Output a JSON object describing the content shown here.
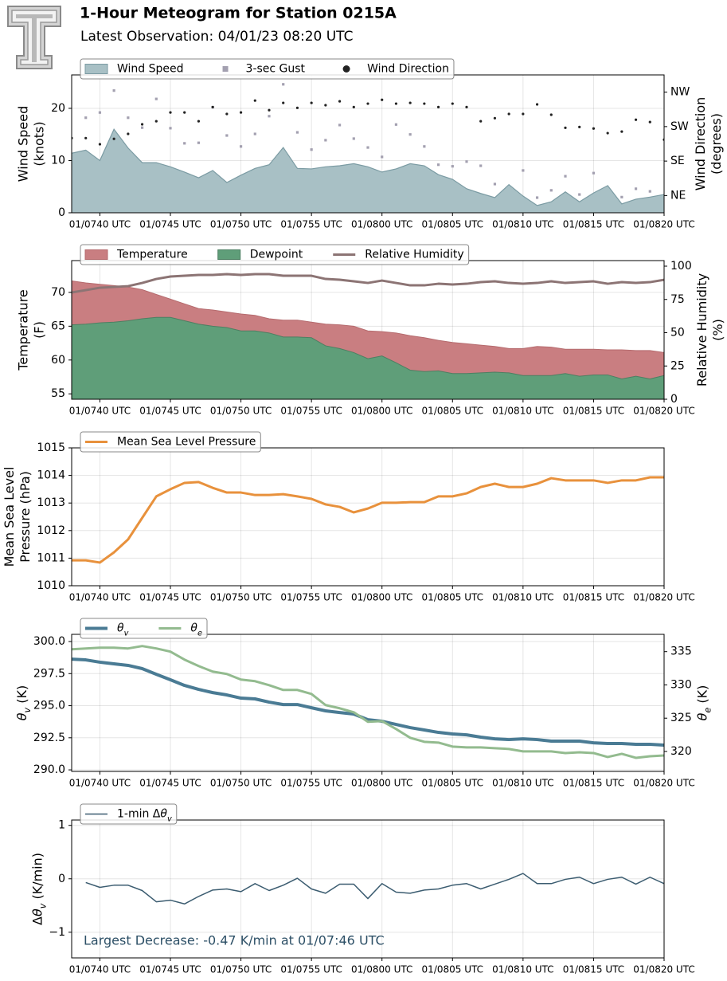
{
  "header": {
    "title": "1-Hour Meteogram for Station 0215A",
    "subtitle": "Latest Observation: 04/01/23 08:20 UTC"
  },
  "chart_data": [
    {
      "type": "area",
      "ylabel": [
        "Wind Speed",
        "(knots)"
      ],
      "y2label": [
        "Wind Direction",
        "(degrees)"
      ],
      "grid": true,
      "legend": "top-left",
      "x": [
        38,
        39,
        40,
        41,
        42,
        43,
        44,
        45,
        46,
        47,
        48,
        49,
        50,
        51,
        52,
        53,
        54,
        55,
        56,
        57,
        58,
        59,
        60,
        61,
        62,
        63,
        64,
        65,
        66,
        67,
        68,
        69,
        70,
        71,
        72,
        73,
        74,
        75,
        76,
        77,
        78,
        79,
        80
      ],
      "xlim": [
        38,
        80
      ],
      "xticks": [
        {
          "value": 40,
          "label": "01/0740 UTC"
        },
        {
          "value": 45,
          "label": "01/0745 UTC"
        },
        {
          "value": 50,
          "label": "01/0750 UTC"
        },
        {
          "value": 55,
          "label": "01/0755 UTC"
        },
        {
          "value": 60,
          "label": "01/0800 UTC"
        },
        {
          "value": 65,
          "label": "01/0805 UTC"
        },
        {
          "value": 70,
          "label": "01/0810 UTC"
        },
        {
          "value": 75,
          "label": "01/0815 UTC"
        },
        {
          "value": 80,
          "label": "01/0820 UTC"
        }
      ],
      "ylim": [
        0,
        26.4
      ],
      "yticks": [
        0,
        10,
        20
      ],
      "y2lim": [
        0,
        360
      ],
      "y2ticks": [
        {
          "value": 45,
          "label": "NE"
        },
        {
          "value": 135,
          "label": "SE"
        },
        {
          "value": 225,
          "label": "SW"
        },
        {
          "value": 315,
          "label": "NW"
        }
      ],
      "series": [
        {
          "name": "Wind Speed",
          "type": "area",
          "color": "#a8c0c5",
          "edge": "#7b9ba3",
          "values": [
            11.4,
            12,
            10,
            16,
            12.4,
            9.6,
            9.6,
            8.8,
            7.8,
            6.7,
            8.1,
            5.8,
            7.2,
            8.5,
            9.2,
            12.5,
            8.5,
            8.4,
            8.8,
            9,
            9.4,
            8.8,
            7.8,
            8.4,
            9.4,
            9,
            7.3,
            6.4,
            4.6,
            3.7,
            2.9,
            5.4,
            3.2,
            1.4,
            2.1,
            4,
            2.1,
            3.8,
            5.2,
            1.7,
            2.6,
            3,
            3.5
          ]
        },
        {
          "name": "3-sec Gust",
          "type": "scatter",
          "marker": "square",
          "color": "#a3a0b0",
          "values": [
            null,
            18.2,
            19.2,
            23.4,
            18.2,
            16.3,
            21.8,
            16.2,
            13.3,
            13.4,
            20.2,
            14.8,
            12.7,
            15.1,
            18.5,
            24.6,
            15.4,
            12.1,
            13.9,
            16.8,
            14.2,
            12.5,
            10.7,
            16.9,
            15,
            12.7,
            9.2,
            8.9,
            9.8,
            9,
            5.5,
            null,
            8.1,
            2.9,
            4.3,
            7,
            3.5,
            7.6,
            null,
            3,
            4.6,
            4.1,
            null
          ]
        },
        {
          "name": "Wind Direction",
          "type": "scatter",
          "marker": "circle",
          "color": "#222222",
          "axis": "y2",
          "values": [
            195,
            195,
            179,
            193,
            206,
            231,
            239,
            262,
            262,
            239,
            276,
            258,
            262,
            293,
            268,
            287,
            274,
            287,
            281,
            291,
            276,
            285,
            295,
            285,
            287,
            285,
            276,
            285,
            276,
            239,
            247,
            258,
            258,
            283,
            256,
            222,
            224,
            220,
            208,
            212,
            243,
            237,
            191
          ]
        }
      ]
    },
    {
      "type": "area",
      "ylabel": [
        "Temperature",
        "(F)"
      ],
      "y2label": [
        "Relative Humidity",
        "(%)"
      ],
      "grid": true,
      "legend": "top-left",
      "x": [
        38,
        39,
        40,
        41,
        42,
        43,
        44,
        45,
        46,
        47,
        48,
        49,
        50,
        51,
        52,
        53,
        54,
        55,
        56,
        57,
        58,
        59,
        60,
        61,
        62,
        63,
        64,
        65,
        66,
        67,
        68,
        69,
        70,
        71,
        72,
        73,
        74,
        75,
        76,
        77,
        78,
        79,
        80
      ],
      "xlim": [
        38,
        80
      ],
      "xticks": [
        {
          "value": 40,
          "label": "01/0740 UTC"
        },
        {
          "value": 45,
          "label": "01/0745 UTC"
        },
        {
          "value": 50,
          "label": "01/0750 UTC"
        },
        {
          "value": 55,
          "label": "01/0755 UTC"
        },
        {
          "value": 60,
          "label": "01/0800 UTC"
        },
        {
          "value": 65,
          "label": "01/0805 UTC"
        },
        {
          "value": 70,
          "label": "01/0810 UTC"
        },
        {
          "value": 75,
          "label": "01/0815 UTC"
        },
        {
          "value": 80,
          "label": "01/0820 UTC"
        }
      ],
      "ylim": [
        54.2,
        74.7
      ],
      "yticks": [
        55,
        60,
        65,
        70
      ],
      "y2lim": [
        0,
        104.2
      ],
      "y2ticks": [
        0,
        25,
        50,
        75,
        100
      ],
      "series": [
        {
          "name": "Temperature",
          "type": "area",
          "color": "#c97e81",
          "edge": "#b56b6e",
          "values": [
            71.7,
            71.4,
            71.2,
            71,
            70.8,
            70.4,
            69.7,
            69,
            68.3,
            67.6,
            67.4,
            67.1,
            66.8,
            66.6,
            66.1,
            65.9,
            65.9,
            65.6,
            65.3,
            65.2,
            65,
            64.3,
            64.2,
            64,
            63.6,
            63.3,
            62.9,
            62.6,
            62.4,
            62.2,
            62,
            61.7,
            61.7,
            62,
            61.9,
            61.6,
            61.6,
            61.6,
            61.5,
            61.5,
            61.4,
            61.4,
            61.1
          ]
        },
        {
          "name": "Dewpoint",
          "type": "area",
          "color": "#5f9e79",
          "edge": "#4d7f62",
          "values": [
            65.2,
            65.3,
            65.5,
            65.6,
            65.8,
            66.1,
            66.3,
            66.3,
            65.8,
            65.3,
            65,
            64.8,
            64.3,
            64.3,
            64,
            63.4,
            63.4,
            63.3,
            62.1,
            61.7,
            61.1,
            60.2,
            60.6,
            59.6,
            58.5,
            58.3,
            58.4,
            58,
            58,
            58.1,
            58.2,
            58.1,
            57.7,
            57.7,
            57.7,
            58,
            57.6,
            57.8,
            57.8,
            57.2,
            57.6,
            57.2,
            57.7
          ]
        },
        {
          "name": "Relative Humidity",
          "type": "line",
          "color": "#8c7474",
          "axis": "y2",
          "values": [
            80.2,
            82,
            83.8,
            84.4,
            85,
            87.4,
            90.4,
            92.2,
            92.8,
            93.4,
            93.4,
            94,
            93.4,
            94,
            94,
            92.8,
            92.8,
            92.8,
            90.4,
            89.8,
            88.6,
            87.4,
            89.2,
            87.4,
            85.6,
            85.6,
            86.8,
            86.2,
            86.8,
            88,
            88.6,
            87.4,
            86.8,
            87.4,
            88.6,
            87.4,
            88,
            88.6,
            86.8,
            88,
            87.4,
            88,
            89.8
          ]
        }
      ]
    },
    {
      "type": "line",
      "ylabel": [
        "Mean Sea Level",
        "Pressure (hPa)"
      ],
      "grid": true,
      "legend": "top-left",
      "x": [
        38,
        39,
        40,
        41,
        42,
        43,
        44,
        45,
        46,
        47,
        48,
        49,
        50,
        51,
        52,
        53,
        54,
        55,
        56,
        57,
        58,
        59,
        60,
        61,
        62,
        63,
        64,
        65,
        66,
        67,
        68,
        69,
        70,
        71,
        72,
        73,
        74,
        75,
        76,
        77,
        78,
        79,
        80
      ],
      "xlim": [
        38,
        80
      ],
      "xticks": [
        {
          "value": 40,
          "label": "01/0740 UTC"
        },
        {
          "value": 45,
          "label": "01/0745 UTC"
        },
        {
          "value": 50,
          "label": "01/0750 UTC"
        },
        {
          "value": 55,
          "label": "01/0755 UTC"
        },
        {
          "value": 60,
          "label": "01/0800 UTC"
        },
        {
          "value": 65,
          "label": "01/0805 UTC"
        },
        {
          "value": 70,
          "label": "01/0810 UTC"
        },
        {
          "value": 75,
          "label": "01/0815 UTC"
        },
        {
          "value": 80,
          "label": "01/0820 UTC"
        }
      ],
      "ylim": [
        1010,
        1015
      ],
      "yticks": [
        1010,
        1011,
        1012,
        1013,
        1014,
        1015
      ],
      "series": [
        {
          "name": "Mean Sea Level Pressure",
          "type": "line",
          "color": "#e8913c",
          "values": [
            1010.92,
            1010.92,
            1010.84,
            1011.21,
            1011.68,
            1012.46,
            1013.24,
            1013.5,
            1013.73,
            1013.76,
            1013.55,
            1013.38,
            1013.38,
            1013.29,
            1013.29,
            1013.32,
            1013.24,
            1013.15,
            1012.95,
            1012.86,
            1012.66,
            1012.8,
            1013.01,
            1013.01,
            1013.03,
            1013.03,
            1013.24,
            1013.24,
            1013.35,
            1013.58,
            1013.7,
            1013.58,
            1013.58,
            1013.7,
            1013.9,
            1013.82,
            1013.82,
            1013.82,
            1013.73,
            1013.82,
            1013.82,
            1013.93,
            1013.93
          ]
        }
      ]
    },
    {
      "type": "line",
      "ylabel": [
        "θv (K)"
      ],
      "y2label": [
        "θe (K)"
      ],
      "grid": true,
      "legend": "top-left",
      "x": [
        38,
        39,
        40,
        41,
        42,
        43,
        44,
        45,
        46,
        47,
        48,
        49,
        50,
        51,
        52,
        53,
        54,
        55,
        56,
        57,
        58,
        59,
        60,
        61,
        62,
        63,
        64,
        65,
        66,
        67,
        68,
        69,
        70,
        71,
        72,
        73,
        74,
        75,
        76,
        77,
        78,
        79,
        80
      ],
      "xlim": [
        38,
        80
      ],
      "xticks": [
        {
          "value": 40,
          "label": "01/0740 UTC"
        },
        {
          "value": 45,
          "label": "01/0745 UTC"
        },
        {
          "value": 50,
          "label": "01/0750 UTC"
        },
        {
          "value": 55,
          "label": "01/0755 UTC"
        },
        {
          "value": 60,
          "label": "01/0800 UTC"
        },
        {
          "value": 65,
          "label": "01/0805 UTC"
        },
        {
          "value": 70,
          "label": "01/0810 UTC"
        },
        {
          "value": 75,
          "label": "01/0815 UTC"
        },
        {
          "value": 80,
          "label": "01/0820 UTC"
        }
      ],
      "ylim": [
        289.88,
        300.56
      ],
      "yticks": [
        {
          "value": 290,
          "label": "290.0"
        },
        {
          "value": 292.5,
          "label": "292.5"
        },
        {
          "value": 295,
          "label": "295.0"
        },
        {
          "value": 297.5,
          "label": "297.5"
        },
        {
          "value": 300,
          "label": "300.0"
        }
      ],
      "y2lim": [
        317.0,
        337.6
      ],
      "y2ticks": [
        320,
        325,
        330,
        335
      ],
      "series": [
        {
          "name": "θv",
          "type": "line",
          "color": "#4a7b94",
          "values": [
            298.63,
            298.57,
            298.39,
            298.26,
            298.14,
            297.89,
            297.45,
            297.02,
            296.58,
            296.27,
            296.02,
            295.84,
            295.59,
            295.53,
            295.28,
            295.09,
            295.09,
            294.84,
            294.6,
            294.47,
            294.35,
            293.91,
            293.79,
            293.54,
            293.29,
            293.11,
            292.92,
            292.8,
            292.73,
            292.55,
            292.42,
            292.36,
            292.42,
            292.36,
            292.24,
            292.24,
            292.24,
            292.11,
            292.05,
            292.05,
            291.99,
            291.99,
            291.93
          ]
        },
        {
          "name": "θe",
          "type": "line",
          "color": "#93bb8f",
          "axis": "y2",
          "values": [
            335.36,
            335.48,
            335.6,
            335.6,
            335.48,
            335.84,
            335.48,
            335.0,
            333.8,
            332.84,
            332,
            331.64,
            330.8,
            330.56,
            329.96,
            329.24,
            329.24,
            328.64,
            326.97,
            326.49,
            325.89,
            324.45,
            324.56,
            323.37,
            322.05,
            321.45,
            321.33,
            320.73,
            320.61,
            320.61,
            320.49,
            320.37,
            320.01,
            320.01,
            320.01,
            319.76,
            319.88,
            319.76,
            319.16,
            319.64,
            319.04,
            319.28,
            319.4
          ]
        }
      ]
    },
    {
      "type": "line",
      "ylabel": [
        "Δθv (K/min)"
      ],
      "grid": true,
      "legend": "top-left",
      "annotation": "Largest Decrease: -0.47 K/min at 01/07:46 UTC",
      "annotation_color": "#2c4f66",
      "x": [
        39,
        40,
        41,
        42,
        43,
        44,
        45,
        46,
        47,
        48,
        49,
        50,
        51,
        52,
        53,
        54,
        55,
        56,
        57,
        58,
        59,
        60,
        61,
        62,
        63,
        64,
        65,
        66,
        67,
        68,
        69,
        70,
        71,
        72,
        73,
        74,
        75,
        76,
        77,
        78,
        79,
        80
      ],
      "xlim": [
        38,
        80
      ],
      "xticks": [
        {
          "value": 40,
          "label": "01/0740 UTC"
        },
        {
          "value": 45,
          "label": "01/0745 UTC"
        },
        {
          "value": 50,
          "label": "01/0750 UTC"
        },
        {
          "value": 55,
          "label": "01/0755 UTC"
        },
        {
          "value": 60,
          "label": "01/0800 UTC"
        },
        {
          "value": 65,
          "label": "01/0805 UTC"
        },
        {
          "value": 70,
          "label": "01/0810 UTC"
        },
        {
          "value": 75,
          "label": "01/0815 UTC"
        },
        {
          "value": 80,
          "label": "01/0820 UTC"
        }
      ],
      "ylim": [
        -1.48,
        1.1
      ],
      "yticks": [
        {
          "value": -1,
          "label": "−1"
        },
        0,
        1
      ],
      "series": [
        {
          "name": "1-min Δθv",
          "type": "line",
          "color": "#3b5c70",
          "values": [
            -0.07,
            -0.16,
            -0.12,
            -0.12,
            -0.22,
            -0.43,
            -0.4,
            -0.47,
            -0.33,
            -0.21,
            -0.19,
            -0.24,
            -0.09,
            -0.22,
            -0.12,
            0.01,
            -0.19,
            -0.27,
            -0.1,
            -0.1,
            -0.37,
            -0.09,
            -0.25,
            -0.27,
            -0.21,
            -0.19,
            -0.12,
            -0.09,
            -0.19,
            -0.1,
            -0.01,
            0.1,
            -0.09,
            -0.09,
            -0.01,
            0.03,
            -0.09,
            -0.01,
            0.03,
            -0.1,
            0.03,
            -0.09
          ]
        }
      ]
    }
  ]
}
